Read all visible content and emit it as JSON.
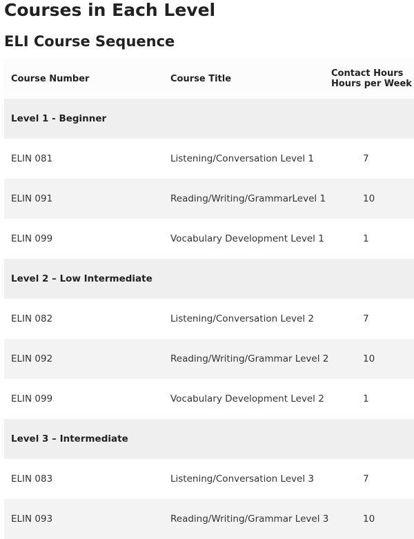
{
  "header": {
    "title": "Courses in Each Level",
    "subtitle": "ELI Course Sequence"
  },
  "table": {
    "columns": [
      "Course Number",
      "Course Title",
      [
        "Contact Hours",
        "Hours per Week"
      ]
    ],
    "rows": [
      [
        "Level 1 - Beginner"
      ],
      [
        "ELIN 081",
        "Listening/Conversation Level 1",
        "7"
      ],
      [
        "ELIN 091",
        "Reading/Writing/GrammarLevel 1",
        "10"
      ],
      [
        "ELIN 099",
        "Vocabulary Development Level 1",
        "1"
      ],
      [
        "Level 2 – Low Intermediate"
      ],
      [
        "ELIN 082",
        "Listening/Conversation Level 2",
        "7"
      ],
      [
        "ELIN 092",
        "Reading/Writing/Grammar Level 2",
        "10"
      ],
      [
        "ELIN 099",
        "Vocabulary Development Level 2",
        "1"
      ],
      [
        "Level 3 – Intermediate"
      ],
      [
        "ELIN 083",
        "Listening/Conversation Level 3",
        "7"
      ],
      [
        "ELIN 093",
        "Reading/Writing/Grammar Level 3",
        "10"
      ]
    ]
  }
}
